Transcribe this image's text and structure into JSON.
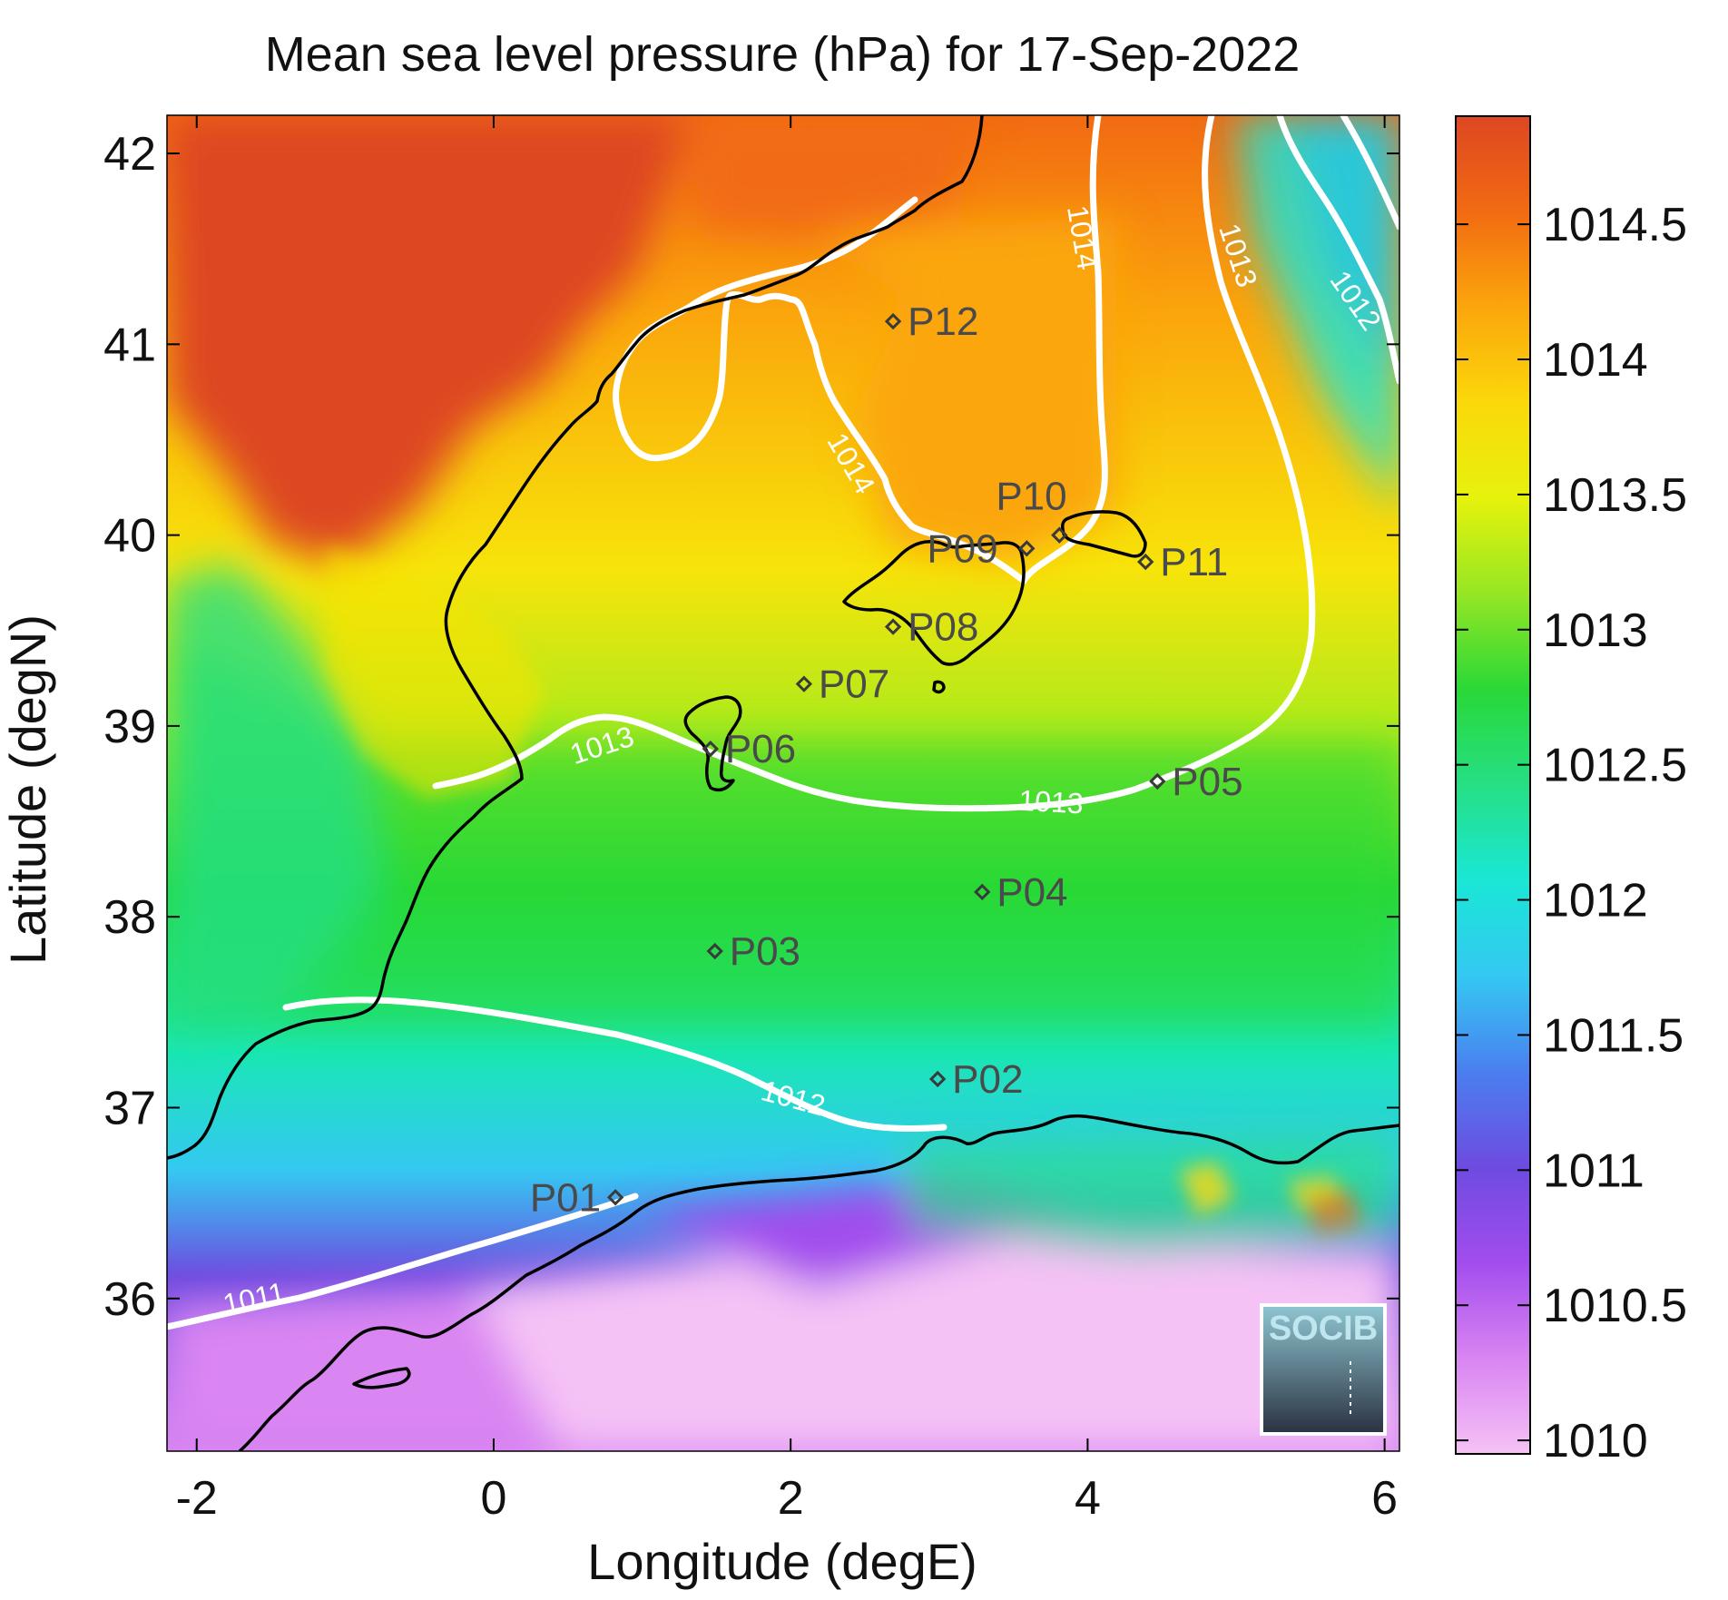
{
  "title": "Mean sea level pressure (hPa) for 17-Sep-2022",
  "xlabel": "Longitude (degE)",
  "ylabel": "Latitude (degN)",
  "x_ticks": [
    "-2",
    "0",
    "2",
    "4",
    "6"
  ],
  "y_ticks": [
    "36",
    "37",
    "38",
    "39",
    "40",
    "41",
    "42"
  ],
  "colorbar": {
    "ticks": [
      "1010",
      "1010.5",
      "1011",
      "1011.5",
      "1012",
      "1012.5",
      "1013",
      "1013.5",
      "1014",
      "1014.5"
    ],
    "range": [
      1009.95,
      1014.9
    ],
    "colors": [
      "#f5c2f5",
      "#d985f2",
      "#a24ded",
      "#6e4be0",
      "#4a7ff0",
      "#34c8f2",
      "#1ae7d6",
      "#26df84",
      "#29d837",
      "#96e624",
      "#e6f20c",
      "#fbd80a",
      "#fba60c",
      "#f26a12",
      "#dd4722"
    ]
  },
  "chart_data": {
    "type": "heatmap",
    "title": "Mean sea level pressure (hPa) for 17-Sep-2022",
    "xlabel": "Longitude (degE)",
    "ylabel": "Latitude (degN)",
    "xlim": [
      -2.2,
      6.1
    ],
    "ylim": [
      35.2,
      42.2
    ],
    "colorbar_range": [
      1009.95,
      1014.9
    ],
    "contour_labels": [
      {
        "label": "1014",
        "lon": 3.9,
        "lat": 41.55
      },
      {
        "label": "1014",
        "lon": 2.35,
        "lat": 40.35
      },
      {
        "label": "1013",
        "lon": 4.95,
        "lat": 41.45
      },
      {
        "label": "1013",
        "lon": 0.75,
        "lat": 38.85
      },
      {
        "label": "1013",
        "lon": 3.75,
        "lat": 38.55
      },
      {
        "label": "1012",
        "lon": 5.75,
        "lat": 41.2
      },
      {
        "label": "1012",
        "lon": 2.0,
        "lat": 37.0
      },
      {
        "label": "1011",
        "lon": -1.6,
        "lat": 35.95
      }
    ],
    "stations": [
      {
        "label": "P01",
        "lon": 0.82,
        "lat": 36.53,
        "side": "left"
      },
      {
        "label": "P02",
        "lon": 2.99,
        "lat": 37.15,
        "side": "right"
      },
      {
        "label": "P03",
        "lon": 1.49,
        "lat": 37.82,
        "side": "right"
      },
      {
        "label": "P04",
        "lon": 3.29,
        "lat": 38.13,
        "side": "right"
      },
      {
        "label": "P05",
        "lon": 4.47,
        "lat": 38.71,
        "side": "right"
      },
      {
        "label": "P06",
        "lon": 1.46,
        "lat": 38.88,
        "side": "right"
      },
      {
        "label": "P07",
        "lon": 2.09,
        "lat": 39.22,
        "side": "right"
      },
      {
        "label": "P08",
        "lon": 2.69,
        "lat": 39.52,
        "side": "right"
      },
      {
        "label": "P09",
        "lon": 3.59,
        "lat": 39.93,
        "side": "leftover"
      },
      {
        "label": "P10",
        "lon": 3.81,
        "lat": 40.0,
        "side": "above"
      },
      {
        "label": "P11",
        "lon": 4.39,
        "lat": 39.86,
        "side": "right"
      },
      {
        "label": "P12",
        "lon": 2.69,
        "lat": 41.12,
        "side": "right"
      }
    ]
  },
  "logo": {
    "text": "SOCIB"
  }
}
